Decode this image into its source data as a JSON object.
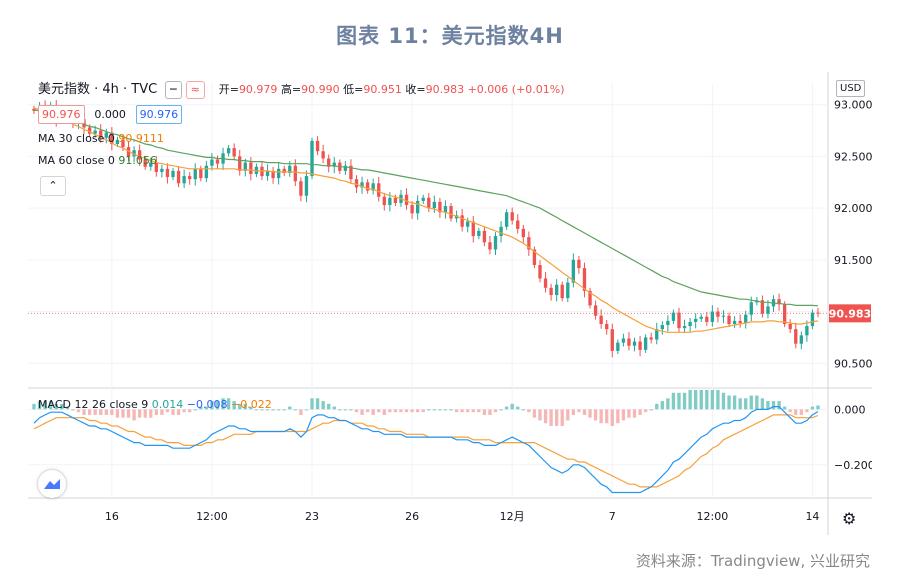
{
  "figure_title": "图表 11：美元指数4H",
  "source": "资料来源：Tradingview, 兴业研究",
  "header": {
    "symbol": "美元指数 · 4h · TVC",
    "pill1": "━",
    "pill2": "≈",
    "open_label": "开=",
    "open": "90.979",
    "high_label": "高=",
    "high": "90.990",
    "low_label": "低=",
    "low": "90.951",
    "close_label": "收=",
    "close": "90.983",
    "change": "+0.006 (+0.01%)",
    "bid": "90.976",
    "spread": "0.000",
    "ask": "90.976",
    "ma30_label": "MA 30 close 0",
    "ma30_value": "90.9111",
    "ma60_label": "MA 60 close 0",
    "ma60_value": "91.056",
    "collapse": "⌃",
    "currency": "USD",
    "gear": "⚙"
  },
  "macd_header": {
    "label": "MACD 12 26 close 9",
    "hist": "0.014",
    "macd": "−0.008",
    "signal": "−0.022"
  },
  "colors": {
    "up": "#26a69a",
    "down": "#ef5350",
    "ma30": "#f5a03a",
    "ma60": "#5ca25c",
    "macd_line": "#2196f3",
    "signal_line": "#f5a03a",
    "hist_up": "#80cbc4",
    "hist_down": "#f5b7b6",
    "grid": "#f0f3fa",
    "last_price_bg": "#ef5350"
  },
  "chart_data": [
    {
      "type": "candlestick",
      "title": "",
      "ylim": [
        90.3,
        93.2
      ],
      "yticks": [
        93.0,
        92.5,
        92.0,
        91.5,
        91.0,
        90.5
      ],
      "ytick_labels": [
        "93.000",
        "92.500",
        "92.000",
        "91.500",
        "",
        "90.500"
      ],
      "last_price": 90.983,
      "last_price_label": "90.983",
      "x_ticks": [
        {
          "i": 14,
          "label": "16"
        },
        {
          "i": 32,
          "label": "12:00"
        },
        {
          "i": 50,
          "label": "23"
        },
        {
          "i": 68,
          "label": "26"
        },
        {
          "i": 86,
          "label": "12月"
        },
        {
          "i": 104,
          "label": "7"
        },
        {
          "i": 122,
          "label": "12:00"
        },
        {
          "i": 140,
          "label": "14"
        }
      ],
      "closes": [
        92.94,
        92.98,
        92.92,
        92.99,
        92.85,
        92.95,
        92.91,
        92.82,
        92.86,
        92.78,
        92.72,
        92.75,
        92.68,
        92.73,
        92.62,
        92.66,
        92.59,
        92.5,
        92.56,
        92.47,
        92.4,
        92.44,
        92.35,
        92.38,
        92.3,
        92.36,
        92.24,
        92.31,
        92.28,
        92.38,
        92.29,
        92.41,
        92.47,
        92.43,
        92.53,
        92.58,
        92.5,
        92.36,
        92.44,
        92.33,
        92.4,
        92.31,
        92.36,
        92.29,
        92.38,
        92.34,
        92.41,
        92.26,
        92.12,
        92.31,
        92.65,
        92.55,
        92.48,
        92.4,
        92.44,
        92.36,
        92.41,
        92.28,
        92.2,
        92.25,
        92.17,
        92.24,
        92.11,
        92.03,
        92.1,
        92.05,
        92.13,
        92.03,
        91.95,
        92.07,
        92.1,
        92.0,
        92.06,
        91.96,
        92.02,
        91.9,
        91.93,
        91.82,
        91.87,
        91.73,
        91.78,
        91.67,
        91.6,
        91.73,
        91.82,
        91.96,
        91.88,
        91.8,
        91.72,
        91.6,
        91.45,
        91.32,
        91.23,
        91.16,
        91.26,
        91.13,
        91.28,
        91.5,
        91.42,
        91.2,
        91.06,
        90.96,
        90.88,
        90.83,
        90.62,
        90.7,
        90.74,
        90.67,
        90.71,
        90.63,
        90.75,
        90.73,
        90.83,
        90.87,
        90.91,
        90.99,
        90.84,
        90.86,
        90.9,
        90.93,
        90.95,
        90.9,
        91.0,
        90.95,
        90.96,
        90.88,
        90.91,
        90.89,
        90.97,
        91.09,
        91.11,
        90.98,
        91.05,
        91.12,
        91.07,
        90.88,
        90.83,
        90.69,
        90.77,
        90.86,
        90.99,
        90.983
      ],
      "ma30": [
        92.97,
        92.95,
        92.93,
        92.91,
        92.88,
        92.86,
        92.84,
        92.81,
        92.79,
        92.76,
        92.74,
        92.71,
        92.69,
        92.66,
        92.63,
        92.6,
        92.58,
        92.55,
        92.52,
        92.5,
        92.48,
        92.46,
        92.44,
        92.43,
        92.42,
        92.41,
        92.4,
        92.39,
        92.38,
        92.38,
        92.38,
        92.38,
        92.38,
        92.38,
        92.38,
        92.38,
        92.38,
        92.37,
        92.37,
        92.37,
        92.36,
        92.36,
        92.36,
        92.35,
        92.35,
        92.35,
        92.35,
        92.35,
        92.34,
        92.34,
        92.33,
        92.32,
        92.31,
        92.3,
        92.29,
        92.27,
        92.26,
        92.24,
        92.23,
        92.21,
        92.19,
        92.18,
        92.16,
        92.14,
        92.12,
        92.11,
        92.09,
        92.07,
        92.05,
        92.04,
        92.02,
        92.0,
        91.99,
        91.97,
        91.96,
        91.94,
        91.92,
        91.9,
        91.88,
        91.86,
        91.84,
        91.82,
        91.8,
        91.78,
        91.76,
        91.74,
        91.72,
        91.69,
        91.66,
        91.62,
        91.58,
        91.54,
        91.5,
        91.46,
        91.42,
        91.38,
        91.34,
        91.3,
        91.26,
        91.22,
        91.18,
        91.15,
        91.11,
        91.08,
        91.04,
        91.01,
        90.98,
        90.95,
        90.92,
        90.89,
        90.86,
        90.84,
        90.82,
        90.81,
        90.8,
        90.8,
        90.8,
        90.8,
        90.8,
        90.81,
        90.81,
        90.82,
        90.83,
        90.84,
        90.85,
        90.86,
        90.87,
        90.88,
        90.89,
        90.9,
        90.9,
        90.9,
        90.91,
        90.91,
        90.9,
        90.9,
        90.89,
        90.88,
        90.88,
        90.89,
        90.9,
        90.91
      ],
      "ma60": [
        92.95,
        92.94,
        92.92,
        92.91,
        92.89,
        92.88,
        92.86,
        92.84,
        92.83,
        92.81,
        92.79,
        92.78,
        92.76,
        92.74,
        92.72,
        92.71,
        92.69,
        92.67,
        92.66,
        92.64,
        92.62,
        92.61,
        92.59,
        92.58,
        92.56,
        92.55,
        92.54,
        92.53,
        92.52,
        92.51,
        92.5,
        92.49,
        92.49,
        92.48,
        92.48,
        92.47,
        92.47,
        92.46,
        92.46,
        92.45,
        92.45,
        92.45,
        92.44,
        92.44,
        92.44,
        92.43,
        92.43,
        92.43,
        92.43,
        92.43,
        92.42,
        92.42,
        92.41,
        92.41,
        92.41,
        92.4,
        92.4,
        92.39,
        92.38,
        92.37,
        92.37,
        92.36,
        92.35,
        92.34,
        92.33,
        92.32,
        92.31,
        92.3,
        92.29,
        92.28,
        92.27,
        92.26,
        92.25,
        92.24,
        92.23,
        92.22,
        92.21,
        92.2,
        92.19,
        92.18,
        92.17,
        92.16,
        92.15,
        92.14,
        92.13,
        92.12,
        92.1,
        92.08,
        92.06,
        92.04,
        92.02,
        92.0,
        91.97,
        91.94,
        91.91,
        91.88,
        91.85,
        91.82,
        91.79,
        91.76,
        91.73,
        91.7,
        91.67,
        91.64,
        91.61,
        91.58,
        91.55,
        91.52,
        91.49,
        91.46,
        91.43,
        91.4,
        91.37,
        91.34,
        91.32,
        91.29,
        91.27,
        91.25,
        91.23,
        91.21,
        91.19,
        91.18,
        91.17,
        91.16,
        91.15,
        91.14,
        91.13,
        91.12,
        91.12,
        91.11,
        91.1,
        91.09,
        91.09,
        91.08,
        91.08,
        91.07,
        91.07,
        91.06,
        91.06,
        91.06,
        91.06,
        91.056
      ]
    },
    {
      "type": "macd",
      "title": "",
      "ylim": [
        -0.32,
        0.07
      ],
      "yticks": [
        0.0,
        -0.2
      ],
      "ytick_labels": [
        "0.000",
        "−0.200"
      ],
      "macd": [
        -0.05,
        -0.03,
        -0.02,
        -0.01,
        -0.01,
        -0.01,
        -0.02,
        -0.03,
        -0.04,
        -0.05,
        -0.06,
        -0.06,
        -0.07,
        -0.07,
        -0.08,
        -0.09,
        -0.1,
        -0.11,
        -0.12,
        -0.12,
        -0.13,
        -0.13,
        -0.13,
        -0.13,
        -0.13,
        -0.14,
        -0.14,
        -0.14,
        -0.14,
        -0.13,
        -0.12,
        -0.11,
        -0.09,
        -0.08,
        -0.07,
        -0.06,
        -0.06,
        -0.07,
        -0.07,
        -0.08,
        -0.08,
        -0.08,
        -0.08,
        -0.08,
        -0.08,
        -0.08,
        -0.07,
        -0.08,
        -0.1,
        -0.08,
        -0.03,
        -0.02,
        -0.02,
        -0.03,
        -0.03,
        -0.04,
        -0.04,
        -0.05,
        -0.06,
        -0.07,
        -0.07,
        -0.08,
        -0.08,
        -0.09,
        -0.09,
        -0.09,
        -0.09,
        -0.1,
        -0.1,
        -0.1,
        -0.1,
        -0.1,
        -0.1,
        -0.1,
        -0.1,
        -0.1,
        -0.11,
        -0.11,
        -0.11,
        -0.12,
        -0.12,
        -0.13,
        -0.13,
        -0.13,
        -0.12,
        -0.11,
        -0.1,
        -0.11,
        -0.12,
        -0.13,
        -0.15,
        -0.17,
        -0.19,
        -0.21,
        -0.22,
        -0.23,
        -0.22,
        -0.2,
        -0.2,
        -0.21,
        -0.23,
        -0.25,
        -0.27,
        -0.28,
        -0.3,
        -0.3,
        -0.3,
        -0.3,
        -0.3,
        -0.3,
        -0.29,
        -0.28,
        -0.26,
        -0.24,
        -0.22,
        -0.19,
        -0.18,
        -0.16,
        -0.14,
        -0.12,
        -0.1,
        -0.09,
        -0.07,
        -0.06,
        -0.05,
        -0.05,
        -0.04,
        -0.04,
        -0.03,
        -0.01,
        0.0,
        0.0,
        0.0,
        0.01,
        0.01,
        -0.01,
        -0.03,
        -0.05,
        -0.05,
        -0.04,
        -0.02,
        -0.008
      ],
      "signal": [
        -0.07,
        -0.06,
        -0.05,
        -0.04,
        -0.03,
        -0.03,
        -0.03,
        -0.03,
        -0.03,
        -0.03,
        -0.04,
        -0.04,
        -0.05,
        -0.05,
        -0.06,
        -0.06,
        -0.07,
        -0.08,
        -0.08,
        -0.09,
        -0.1,
        -0.1,
        -0.11,
        -0.11,
        -0.12,
        -0.12,
        -0.12,
        -0.13,
        -0.13,
        -0.13,
        -0.13,
        -0.12,
        -0.12,
        -0.11,
        -0.11,
        -0.1,
        -0.09,
        -0.09,
        -0.09,
        -0.09,
        -0.08,
        -0.08,
        -0.08,
        -0.08,
        -0.08,
        -0.08,
        -0.08,
        -0.08,
        -0.08,
        -0.08,
        -0.07,
        -0.06,
        -0.05,
        -0.05,
        -0.04,
        -0.04,
        -0.04,
        -0.05,
        -0.05,
        -0.05,
        -0.06,
        -0.06,
        -0.07,
        -0.07,
        -0.08,
        -0.08,
        -0.08,
        -0.09,
        -0.09,
        -0.09,
        -0.09,
        -0.1,
        -0.1,
        -0.1,
        -0.1,
        -0.1,
        -0.1,
        -0.1,
        -0.1,
        -0.11,
        -0.11,
        -0.11,
        -0.11,
        -0.12,
        -0.12,
        -0.12,
        -0.12,
        -0.12,
        -0.12,
        -0.12,
        -0.12,
        -0.13,
        -0.14,
        -0.15,
        -0.16,
        -0.17,
        -0.18,
        -0.18,
        -0.19,
        -0.19,
        -0.2,
        -0.21,
        -0.22,
        -0.23,
        -0.24,
        -0.25,
        -0.26,
        -0.27,
        -0.27,
        -0.28,
        -0.28,
        -0.28,
        -0.28,
        -0.27,
        -0.26,
        -0.25,
        -0.24,
        -0.22,
        -0.21,
        -0.19,
        -0.17,
        -0.16,
        -0.14,
        -0.13,
        -0.11,
        -0.1,
        -0.09,
        -0.08,
        -0.07,
        -0.06,
        -0.05,
        -0.04,
        -0.03,
        -0.02,
        -0.02,
        -0.02,
        -0.02,
        -0.03,
        -0.03,
        -0.03,
        -0.03,
        -0.022
      ]
    }
  ]
}
